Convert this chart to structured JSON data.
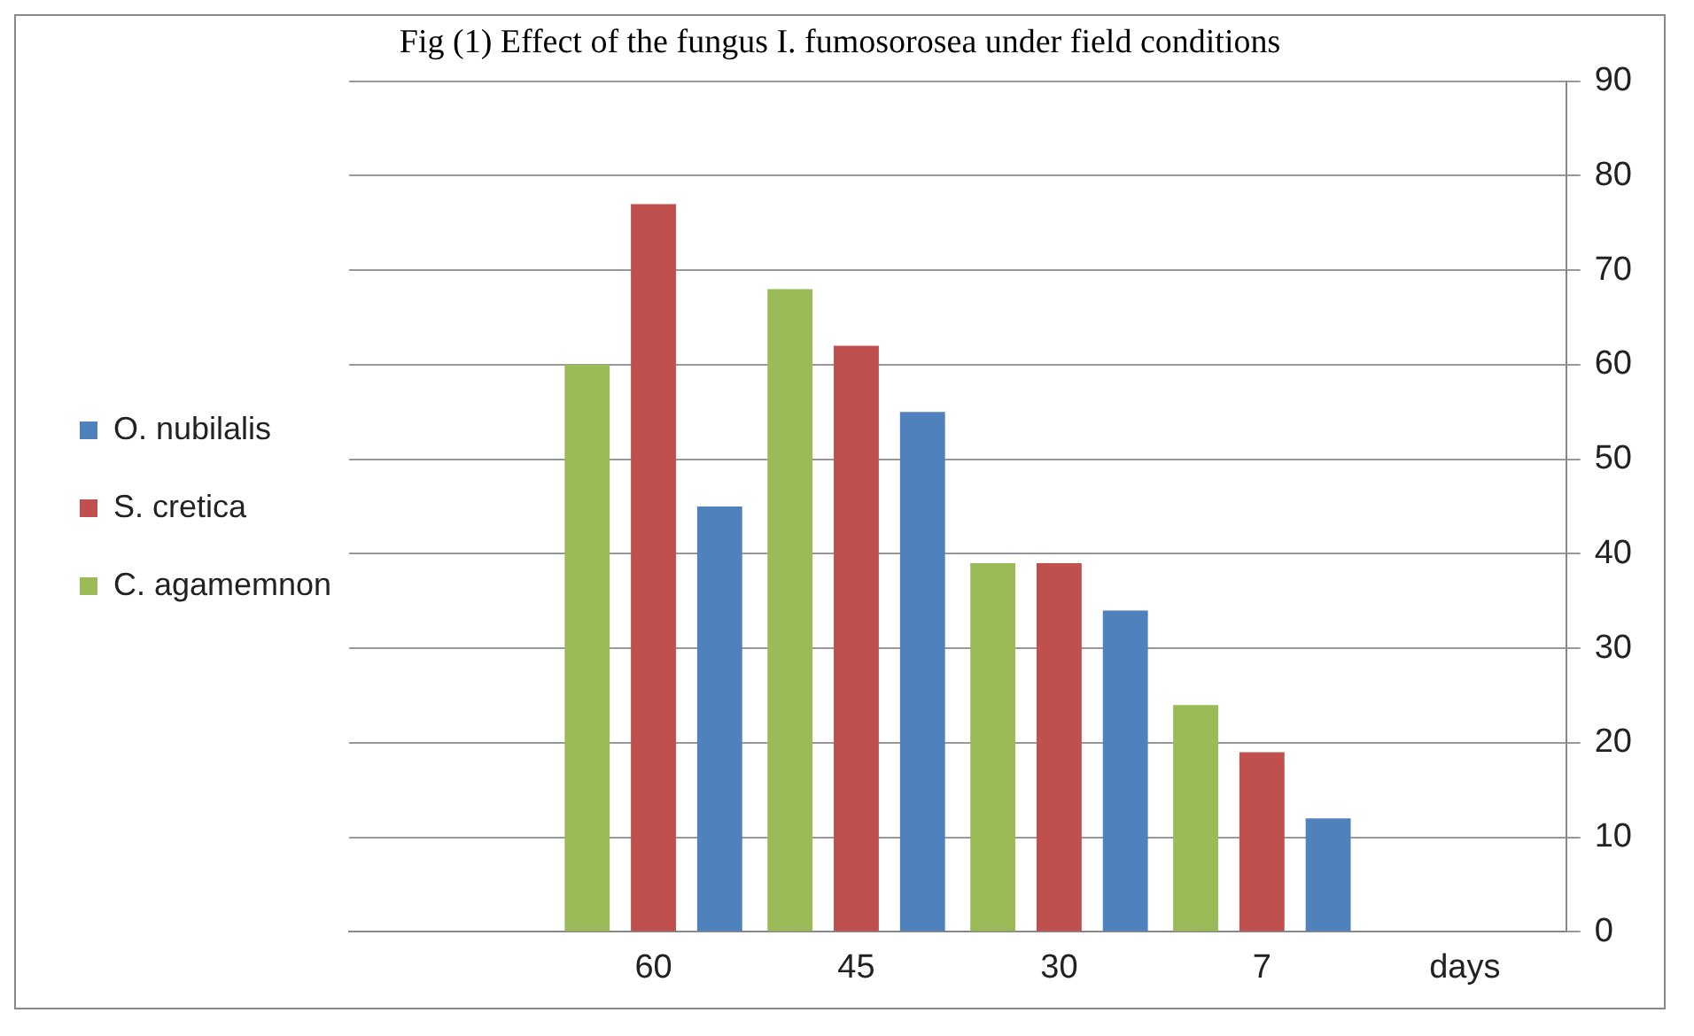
{
  "chart_data": {
    "type": "bar",
    "title": "Fig (1) Effect of the fungus I. fumosorosea under field conditions",
    "categories": [
      null,
      "60",
      "45",
      "30",
      "7",
      "days"
    ],
    "series": [
      {
        "name": "C. agamemnon",
        "color": "#9bbb59",
        "values": [
          null,
          60,
          68,
          39,
          24,
          null
        ]
      },
      {
        "name": "S. cretica",
        "color": "#c0504d",
        "values": [
          null,
          77,
          62,
          39,
          19,
          null
        ]
      },
      {
        "name": "O. nubilalis",
        "color": "#4f81bd",
        "values": [
          null,
          45,
          55,
          34,
          12,
          null
        ]
      }
    ],
    "ylim": [
      0,
      90
    ],
    "yticks": [
      0,
      10,
      20,
      30,
      40,
      50,
      60,
      70,
      80,
      90
    ],
    "grid": "y",
    "legend": "left"
  }
}
